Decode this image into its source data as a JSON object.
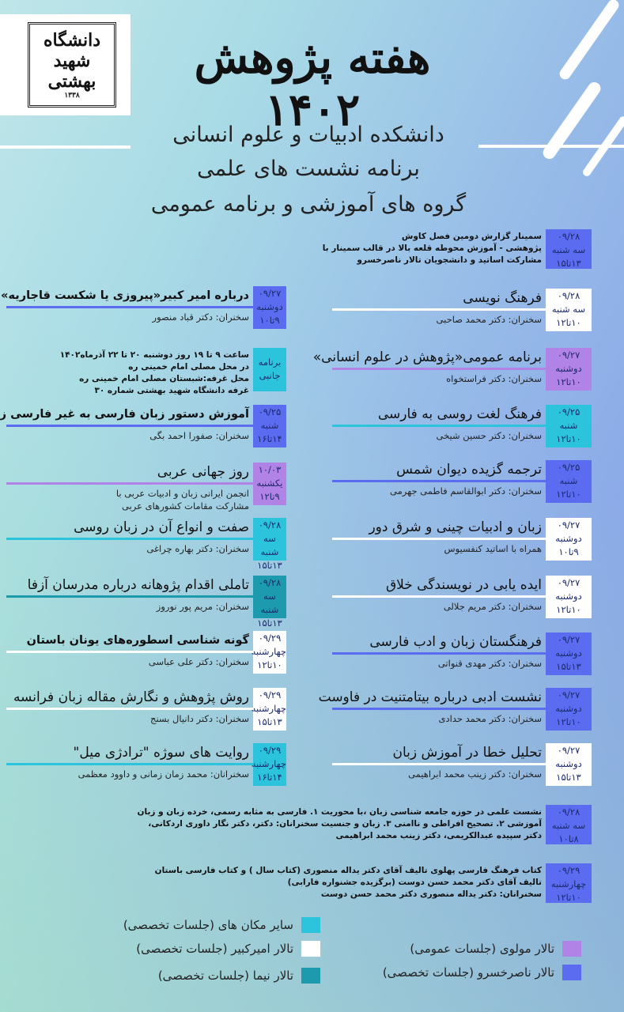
{
  "logo": {
    "text": "دانشگاه شهید بهشتی",
    "year": "۱۳۳۸"
  },
  "header": {
    "title": "هفته پژوهش ۱۴۰۲",
    "lines": [
      "دانشکده ادبیات و علوم انسانی",
      "برنامه نشست های علمی",
      "گروه های آموزشی و برنامه عمومی"
    ]
  },
  "colors": {
    "blue": "#5b6cf0",
    "purple": "#b283e6",
    "cyan": "#2cc3dc",
    "teal": "#1e9aae",
    "white": "#ffffff"
  },
  "right_column": [
    {
      "date": "۰۹/۲۸",
      "day": "سه شنبه",
      "time": "۱۳تا۱۵",
      "color": "blue",
      "paragraph": [
        "سمینار گزارش دومین فصل کاوش",
        "پژوهشی - آموزش محوطه قلعه بالا در قالب سمینار با",
        "مشارکت اساتید و دانشجویان تالار ناصرخسرو"
      ]
    },
    {
      "date": "۰۹/۲۸",
      "day": "سه شنبه",
      "time": "۱۰تا۱۲",
      "color": "white",
      "title": "فرهنگ نویسی",
      "speaker": "سخنران: دکتر محمد صاحبی"
    },
    {
      "date": "۰۹/۲۷",
      "day": "دوشنبه",
      "time": "۱۰تا۱۲",
      "color": "purple",
      "title": "برنامه عمومی«پژوهش در علوم انسانی»",
      "speaker": "سخنران:  دکتر فراستخواه"
    },
    {
      "date": "۰۹/۲۵",
      "day": "شنبه",
      "time": "۱۰تا۱۲",
      "color": "cyan",
      "title": "فرهنگ لغت روسی به فارسی",
      "speaker": "سخنران: دکتر حسین شیخی"
    },
    {
      "date": "۰۹/۲۵",
      "day": "شنبه",
      "time": "۱۰تا۱۲",
      "color": "blue",
      "title": "ترجمه گزیده دیوان شمس",
      "speaker": "سخنران: دکتر ابوالقاسم فاطمی جهرمی"
    },
    {
      "date": "۰۹/۲۷",
      "day": "دوشنبه",
      "time": "۹تا۱۰",
      "color": "white",
      "title": "زبان و ادبیات چینی و شرق دور",
      "speaker": "همراه با اساتید کنفسیوس"
    },
    {
      "date": "۰۹/۲۷",
      "day": "دوشنبه",
      "time": "۱۰تا۱۲",
      "color": "white",
      "title": "ایده یابی در نویسندگی خلاق",
      "speaker": "سخنران: دکتر مریم جلالی"
    },
    {
      "date": "۰۹/۲۷",
      "day": "دوشنبه",
      "time": "۱۳تا۱۵",
      "color": "blue",
      "title": "فرهنگستان زبان و ادب فارسی",
      "speaker": "سخنران: دکتر مهدی قنواتی"
    },
    {
      "date": "۰۹/۲۷",
      "day": "دوشنبه",
      "time": "۱۰تا۱۲",
      "color": "blue",
      "title": "نشست ادبی درباره بیتامتنیت در فاوست",
      "speaker": "سخنران: دکتر محمد حدادی"
    },
    {
      "date": "۰۹/۲۷",
      "day": "دوشنبه",
      "time": "۱۳تا۱۵",
      "color": "white",
      "title": "تحلیل خطا در آموزش زبان",
      "speaker": "سخنران: دکتر زینب محمد ابراهیمی"
    },
    {
      "date": "۰۹/۲۸",
      "day": "سه شنبه",
      "time": "۸تا۱۰",
      "color": "blue",
      "paragraph": [
        "نشست علمی در حوزه جامعه شناسی زبان ،با محوریت  ۱. فارسی به مثابه رسمی، خرده زبان و زبان",
        "آموزشی ۲. تصحیح افراطی و ناامنی  ۳. زبان و جنسیت سخنرانان: دکتر، دکتر نگار داوری اردکانی،",
        "دکتر سپیده عبدالکریمی، دکتر زینب محمد ابراهیمی"
      ]
    },
    {
      "date": "۰۹/۲۹",
      "day": "چهارشنبه",
      "time": "۱۰تا۱۲",
      "color": "blue",
      "paragraph": [
        "کتاب فرهنگ فارسی پهلوی تالیف آقای دکتر یداله منصوری (کتاب سال ) و کتاب فارسی باستان",
        "تالیف آقای دکتر محمد حسن دوست (برگزیده جشنواره فارابی)",
        "سخنرانان: دکتر یداله منصوری دکتر محمد حسن دوست"
      ]
    }
  ],
  "left_column": [
    {
      "date": "۰۹/۲۷",
      "day": "دوشنبه",
      "time": "۹تا۱۰",
      "color": "blue",
      "title": "درباره امیر کبیر«پیروزی یا شکست قاجاریه»",
      "bold": true,
      "speaker": "سخنران: دکتر قباد منصور"
    },
    {
      "label": "برنامه جانبی",
      "color": "cyan",
      "paragraph": [
        "ساعت ۹ تا ۱۹ روز دوشنبه ۲۰ تا ۲۲ آذرماه۱۴۰۲",
        "در محل مصلی امام خمینی ره",
        "محل غرفه:شبستان مصلی امام خمینی ره",
        "غرفه دانشگاه شهید بهشتی شماره ۳۰"
      ]
    },
    {
      "date": "۰۹/۲۵",
      "day": "شنبه",
      "time": "۱۴تا۱۶",
      "color": "blue",
      "title": "آموزش دستور زبان فارسی به غیر فارسی زبانان",
      "bold": true,
      "speaker": "سخنران: صفورا احمد بگی"
    },
    {
      "date": "۱۰/۰۳",
      "day": "یکشنبه",
      "time": "۹تا۱۲",
      "color": "purple",
      "title": "روز جهانی عربی",
      "speaker": "انجمن ایرانی زبان و ادبیات عربی با",
      "speaker2": "مشارکت مقامات کشورهای عربی"
    },
    {
      "date": "۰۹/۲۸",
      "day": "سه شنبه",
      "time": "۱۳تا۱۵",
      "color": "cyan",
      "title": "صفت و انواع آن در زبان روسی",
      "speaker": "سخنران: دکتر بهاره چراغی"
    },
    {
      "date": "۰۹/۲۸",
      "day": "سه شنبه",
      "time": "۱۳تا۱۵",
      "color": "teal",
      "title": "تاملی اقدام پژوهانه درباره مدرسان آزفا",
      "speaker": "سخنران: مریم پور نوروز"
    },
    {
      "date": "۰۹/۲۹",
      "day": "چهارشنبه",
      "time": "۱۰تا۱۲",
      "color": "white",
      "title": "گونه شناسی اسطوره‌های  یونان   باستان",
      "bold": true,
      "speaker": "سخنران: دکتر علی عباسی"
    },
    {
      "date": "۰۹/۲۹",
      "day": "چهارشنبه",
      "time": "۱۳تا۱۵",
      "color": "white",
      "title": "روش پژوهش و نگارش مقاله زبان فرانسه",
      "speaker": "سخنران: دکتر دانیال بسنج"
    },
    {
      "date": "۰۹/۲۹",
      "day": "چهارشنبه",
      "time": "۱۴تا۱۶",
      "color": "cyan",
      "title": "روایت های سوژه \"ترادژی میل\"",
      "speaker": "سخنرانان: محمد زمان زمانی و داوود معظمی"
    }
  ],
  "legend": [
    {
      "label": "سایر مکان های (جلسات تخصصی)",
      "color": "cyan"
    },
    {
      "label": "تالار امیرکبیر (جلسات تخصصی)",
      "color": "white"
    },
    {
      "label": "تالار نیما (جلسات تخصصی)",
      "color": "teal"
    },
    {
      "label": "تالار مولوی (جلسات عمومی)",
      "color": "purple"
    },
    {
      "label": "تالار ناصرخسرو (جلسات تخصصی)",
      "color": "blue"
    }
  ]
}
